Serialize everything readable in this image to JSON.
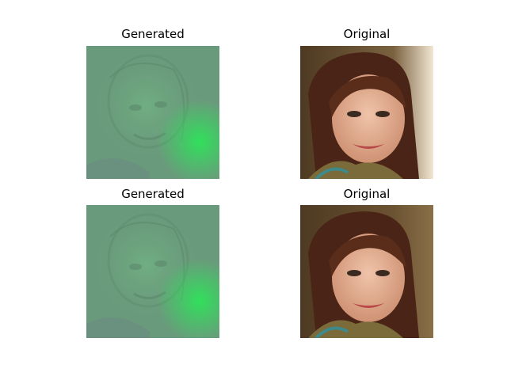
{
  "panels": [
    {
      "title": "Generated",
      "kind": "generated"
    },
    {
      "title": "Original",
      "kind": "original"
    },
    {
      "title": "Generated",
      "kind": "generated"
    },
    {
      "title": "Original",
      "kind": "original"
    }
  ],
  "colors": {
    "generated_base": "#6a9a7c",
    "generated_glow": "#2ee35a",
    "original_background": "#6b5232",
    "original_hair": "#4a2416",
    "original_skin": "#e7b39a"
  }
}
